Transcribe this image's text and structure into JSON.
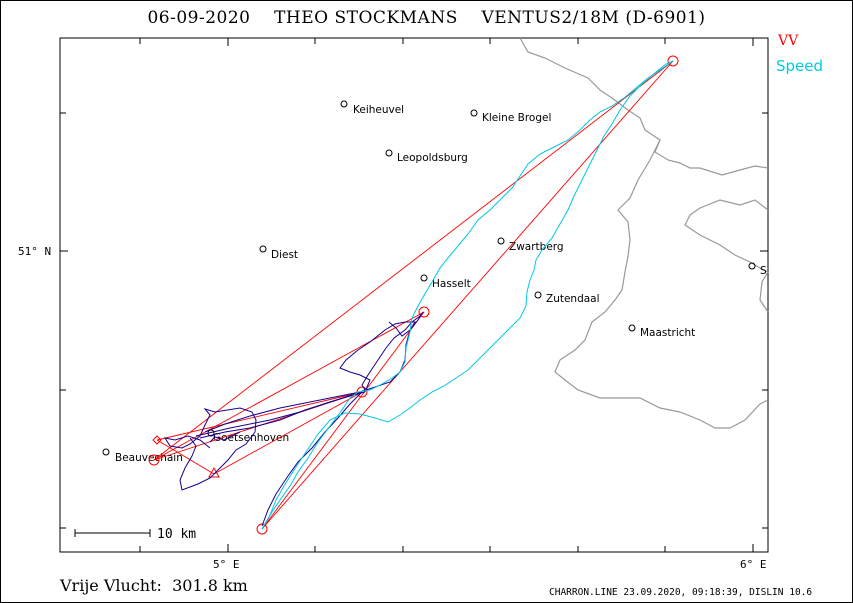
{
  "header": {
    "date": "06-09-2020",
    "pilot": "THEO STOCKMANS",
    "glider": "VENTUS2/18M (D-6901)"
  },
  "legend": {
    "task_label": "VV",
    "speed_label": "Speed",
    "task_color": "#ff0000",
    "speed_color": "#00ccdd",
    "track_color": "#1a008c"
  },
  "axes": {
    "lat_label": "51° N",
    "lon_labels": [
      "5° E",
      "6° E"
    ]
  },
  "places": [
    {
      "name": "Keiheuvel"
    },
    {
      "name": "Kleine Brogel"
    },
    {
      "name": "Leopoldsburg"
    },
    {
      "name": "Diest"
    },
    {
      "name": "Zwartberg"
    },
    {
      "name": "Hasselt"
    },
    {
      "name": "Zutendaal"
    },
    {
      "name": "Maastricht"
    },
    {
      "name": "Goetsenhoven"
    },
    {
      "name": "Beauvechain"
    },
    {
      "name": "S"
    }
  ],
  "scale_bar": {
    "label": "10 km"
  },
  "summary": {
    "label": "Vrije Vlucht:",
    "distance": "301.8 km"
  },
  "footer": {
    "text": "CHARRON.LINE 23.09.2020, 09:18:39, DISLIN 10.6"
  }
}
